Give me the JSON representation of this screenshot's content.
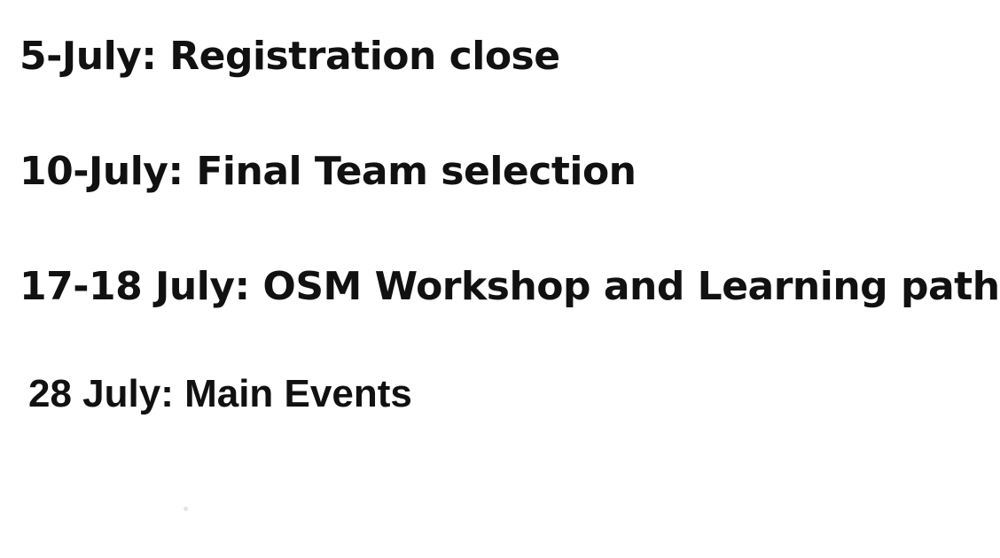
{
  "schedule": {
    "items": [
      {
        "text": "5-July: Registration close"
      },
      {
        "text": "10-July: Final Team selection"
      },
      {
        "text": "17-18 July: OSM Workshop and Learning path"
      },
      {
        "text": "28 July: Main Events"
      }
    ]
  }
}
